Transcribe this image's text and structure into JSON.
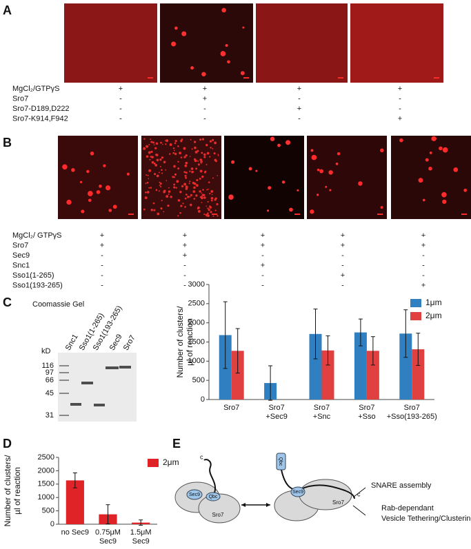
{
  "panel_a": {
    "label": "A",
    "conditions": [
      {
        "name": "MgCl₂/GTPγS",
        "marks": [
          "+",
          "+",
          "+",
          "+"
        ]
      },
      {
        "name": "Sro7",
        "marks": [
          "-",
          "+",
          "-",
          "-"
        ]
      },
      {
        "name": "Sro7-D189,D222",
        "marks": [
          "-",
          "-",
          "+",
          "-"
        ]
      },
      {
        "name": "Sro7-K914,F942",
        "marks": [
          "-",
          "-",
          "-",
          "+"
        ]
      }
    ]
  },
  "panel_b": {
    "label": "B",
    "conditions": [
      {
        "name": "MgCl₂/ GTPγS",
        "marks": [
          "+",
          "+",
          "+",
          "+",
          "+"
        ]
      },
      {
        "name": "Sro7",
        "marks": [
          "+",
          "+",
          "+",
          "+",
          "+"
        ]
      },
      {
        "name": "Sec9",
        "marks": [
          "-",
          "+",
          "-",
          "-",
          "-"
        ]
      },
      {
        "name": "Snc1",
        "marks": [
          "-",
          "-",
          "+",
          "-",
          "-"
        ]
      },
      {
        "name": "Sso1(1-265)",
        "marks": [
          "-",
          "-",
          "-",
          "+",
          "-"
        ]
      },
      {
        "name": "Sso1(193-265)",
        "marks": [
          "-",
          "-",
          "-",
          "-",
          "+"
        ]
      }
    ]
  },
  "panel_c": {
    "label": "C",
    "gel": {
      "title": "Coomassie Gel",
      "lanes": [
        "Snc1",
        "Sso1(1-265)",
        "Sso1(193-265)",
        "Sec9",
        "Sro7"
      ],
      "unit": "kD",
      "markers": [
        116,
        97,
        66,
        45,
        31
      ]
    }
  },
  "panel_d": {
    "label": "D"
  },
  "panel_e": {
    "label": "E",
    "left": {
      "tail": "c",
      "sec9": "Sec9",
      "qbc": "Qbc",
      "sro7": "Sro7"
    },
    "right": {
      "tail": "c",
      "sec9": "Sec9",
      "qbc": "Qbc",
      "sro7": "Sro7"
    },
    "outcomes": [
      [
        "SNARE assembly"
      ],
      [
        "Rab-dependant",
        "Vesicle Tethering/Clustering"
      ]
    ]
  },
  "chart_data": [
    {
      "type": "bar",
      "y_label": [
        "Number of clusters/",
        "µl of reaction"
      ],
      "categories": [
        [
          "Sro7"
        ],
        [
          "Sro7",
          "+Sec9"
        ],
        [
          "Sro7",
          "+Snc"
        ],
        [
          "Sro7",
          "+Sso"
        ],
        [
          "Sro7",
          "+Sso(193-265)"
        ]
      ],
      "series": [
        {
          "name": "1μm",
          "color": "#2f7fc1",
          "values": [
            1680,
            430,
            1710,
            1750,
            1720
          ],
          "errors": [
            870,
            450,
            650,
            350,
            620
          ]
        },
        {
          "name": "2μm",
          "color": "#e0403f",
          "values": [
            1270,
            null,
            1280,
            1270,
            1310
          ],
          "errors": [
            580,
            null,
            380,
            370,
            420
          ]
        }
      ],
      "ylim": [
        0,
        3000
      ],
      "yticks": [
        0,
        500,
        1000,
        1500,
        2000,
        2500,
        3000
      ]
    },
    {
      "type": "bar",
      "y_label": [
        "Number of clusters/",
        "µl of reaction"
      ],
      "categories": [
        [
          "no Sec9"
        ],
        [
          "0.75μM",
          "Sec9"
        ],
        [
          "1.5μM",
          "Sec9"
        ]
      ],
      "series": [
        {
          "name": "2μm",
          "color": "#e02326",
          "values": [
            1640,
            370,
            60
          ],
          "errors": [
            280,
            360,
            100
          ]
        }
      ],
      "ylim": [
        0,
        2500
      ],
      "yticks": [
        0,
        500,
        1000,
        1500,
        2000,
        2500
      ]
    }
  ]
}
